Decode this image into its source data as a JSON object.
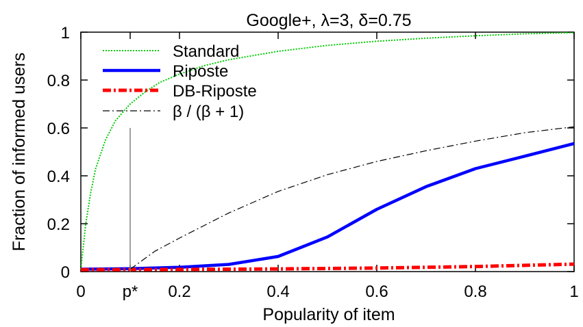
{
  "chart_data": {
    "type": "line",
    "title": "Google+, λ=3, δ=0.75",
    "xlabel": "Popularity of item",
    "ylabel": "Fraction of informed users",
    "xlim": [
      0,
      1
    ],
    "ylim": [
      0,
      1
    ],
    "x_ticks": [
      {
        "value": 0,
        "label": "0"
      },
      {
        "value": 0.1,
        "label": "p*"
      },
      {
        "value": 0.2,
        "label": "0.2"
      },
      {
        "value": 0.4,
        "label": "0.4"
      },
      {
        "value": 0.6,
        "label": "0.6"
      },
      {
        "value": 0.8,
        "label": "0.8"
      },
      {
        "value": 1,
        "label": "1"
      }
    ],
    "y_ticks": [
      {
        "value": 0,
        "label": "0"
      },
      {
        "value": 0.2,
        "label": "0.2"
      },
      {
        "value": 0.4,
        "label": "0.4"
      },
      {
        "value": 0.6,
        "label": "0.6"
      },
      {
        "value": 0.8,
        "label": "0.8"
      },
      {
        "value": 1,
        "label": "1"
      }
    ],
    "grid": false,
    "legend_position": "top-left",
    "series": [
      {
        "name": "Standard",
        "color": "#00cc00",
        "style": "dotted",
        "x": [
          0,
          0.01,
          0.02,
          0.03,
          0.05,
          0.07,
          0.1,
          0.13,
          0.16,
          0.2,
          0.25,
          0.3,
          0.4,
          0.5,
          0.6,
          0.7,
          0.8,
          0.9,
          1.0
        ],
        "y": [
          0.01,
          0.2,
          0.33,
          0.43,
          0.55,
          0.63,
          0.7,
          0.75,
          0.79,
          0.825,
          0.86,
          0.885,
          0.92,
          0.945,
          0.962,
          0.975,
          0.985,
          0.993,
          0.998
        ]
      },
      {
        "name": "Riposte",
        "color": "#0000ff",
        "style": "solid",
        "x": [
          0,
          0.1,
          0.2,
          0.3,
          0.4,
          0.5,
          0.6,
          0.7,
          0.8,
          0.9,
          1.0
        ],
        "y": [
          0.01,
          0.012,
          0.018,
          0.03,
          0.063,
          0.145,
          0.26,
          0.355,
          0.43,
          0.482,
          0.535
        ]
      },
      {
        "name": "DB-Riposte",
        "color": "#ff0000",
        "style": "dash-dot",
        "x": [
          0,
          0.2,
          0.4,
          0.6,
          0.8,
          1.0
        ],
        "y": [
          0.008,
          0.009,
          0.011,
          0.015,
          0.021,
          0.031
        ]
      },
      {
        "name": "β / (β + 1)",
        "color": "#000000",
        "style": "thin-dash-dot",
        "x": [
          0.1,
          0.15,
          0.2,
          0.3,
          0.4,
          0.5,
          0.6,
          0.7,
          0.8,
          0.9,
          1.0
        ],
        "y": [
          0.01,
          0.085,
          0.14,
          0.245,
          0.335,
          0.405,
          0.46,
          0.505,
          0.545,
          0.58,
          0.605
        ]
      }
    ],
    "annotations": [
      {
        "type": "vline",
        "x": 0.1,
        "y_from": 0,
        "y_to": 0.6,
        "color": "#808080"
      }
    ]
  }
}
